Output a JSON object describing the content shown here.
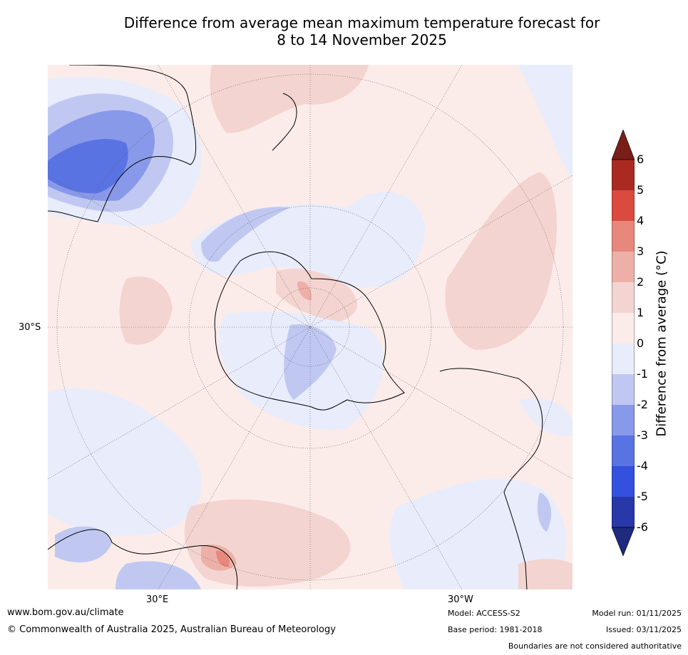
{
  "title": {
    "line1": "Difference from average mean maximum temperature forecast for",
    "line2": "8 to 14 November 2025"
  },
  "map": {
    "projection": "South polar stereographic",
    "lat_label": "30°S",
    "lon_labels": [
      "30°E",
      "30°W"
    ]
  },
  "colorbar": {
    "title": "Difference from average (°C)",
    "ticks": [
      "6",
      "5",
      "4",
      "3",
      "2",
      "1",
      "0",
      "-1",
      "-2",
      "-3",
      "-4",
      "-5",
      "-6"
    ],
    "colors": {
      "gt6": "#7a1e18",
      "5to6": "#aa2a22",
      "4to5": "#da4a3e",
      "3to4": "#e8877c",
      "2to3": "#edb0a8",
      "1to2": "#f4d4d0",
      "0to1": "#fbecea",
      "m1to0": "#e8ecfb",
      "m2tom1": "#c0c8f2",
      "m3tom2": "#8899ea",
      "m4tom3": "#5a73e2",
      "m5tom4": "#3350de",
      "m6tom5": "#2838a8",
      "ltm6": "#1e2a7e"
    }
  },
  "footer": {
    "website": "www.bom.gov.au/climate",
    "copyright": "© Commonwealth of Australia 2025, Australian Bureau of Meteorology",
    "model": "Model: ACCESS-S2",
    "base_period": "Base period: 1981-2018",
    "model_run": "Model run: 01/11/2025",
    "issued": "Issued: 03/11/2025",
    "disclaimer": "Boundaries are not considered authoritative"
  }
}
